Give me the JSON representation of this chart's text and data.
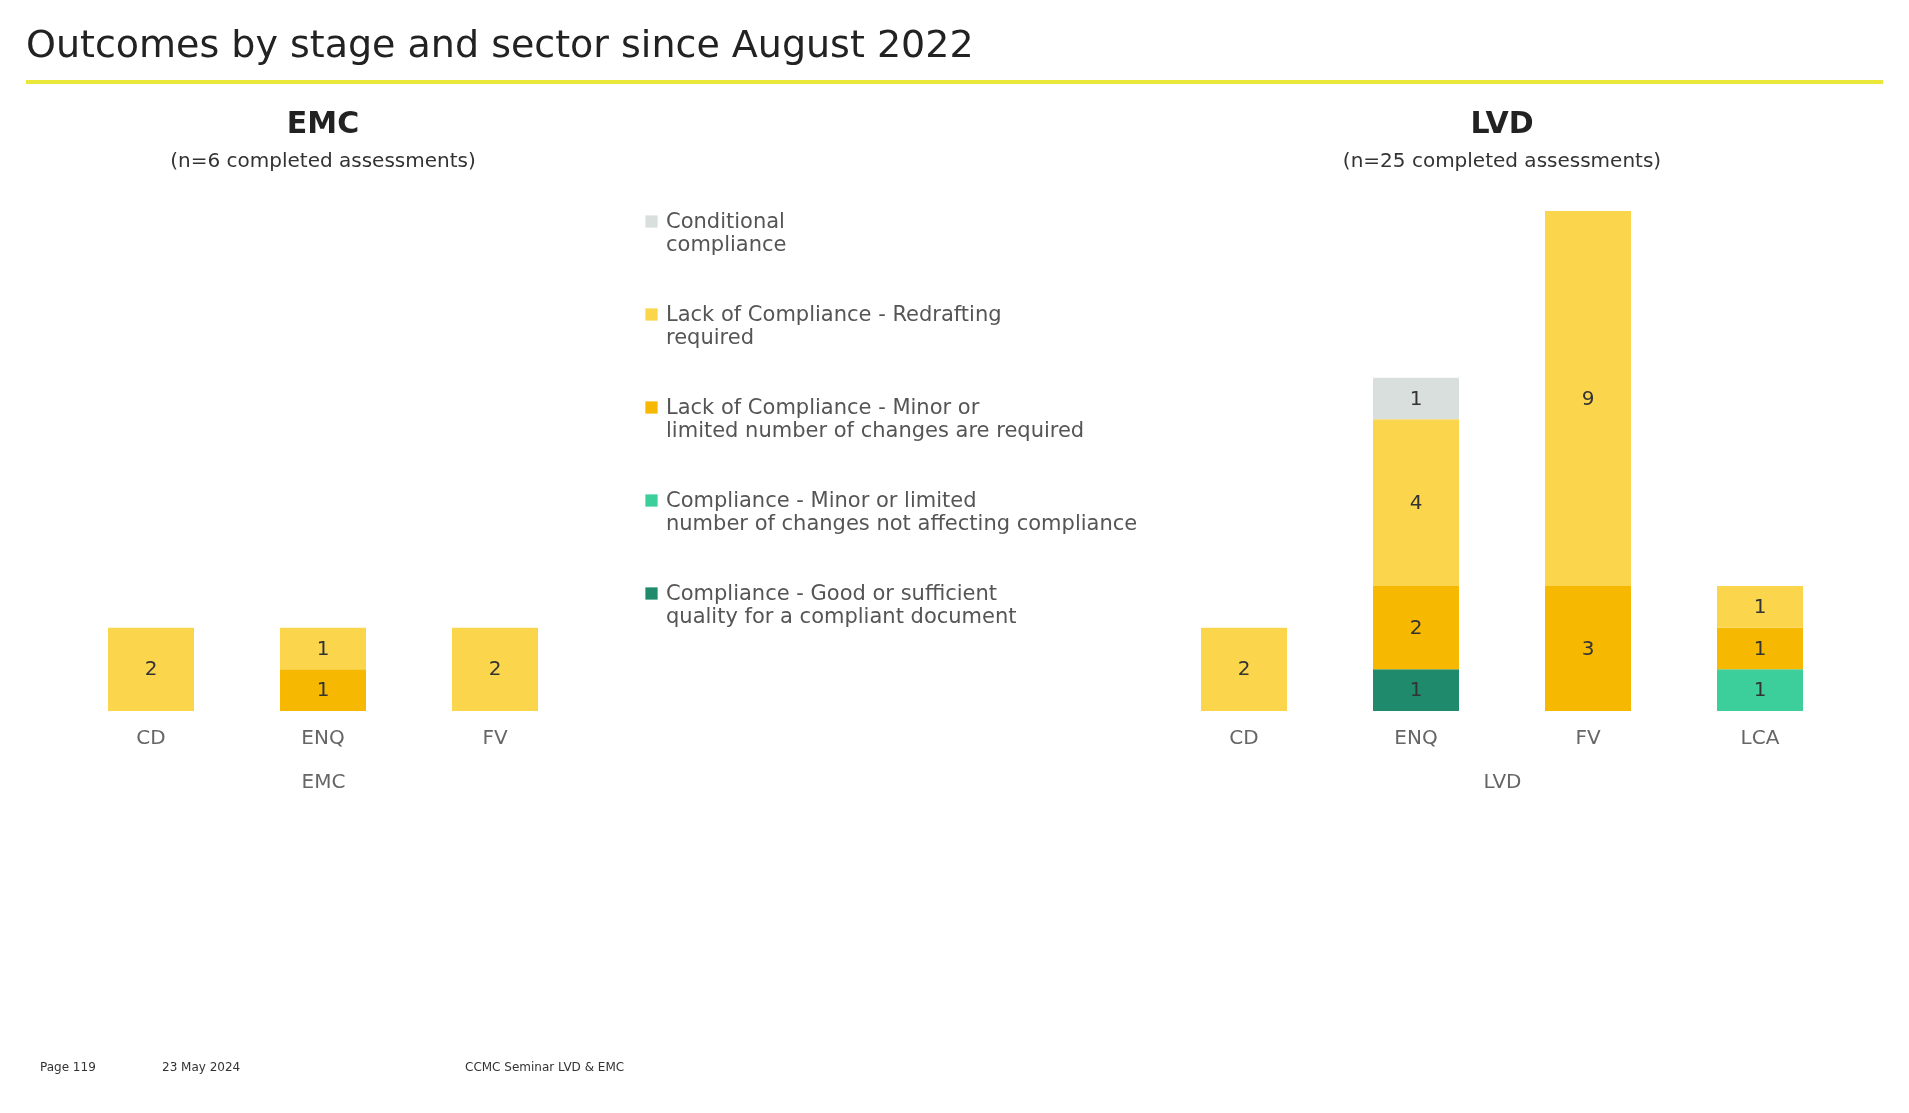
{
  "chart_data": [
    {
      "type": "bar",
      "stacked": true,
      "data_labels": true,
      "tick_labels": "x",
      "legend": "right",
      "title": "EMC",
      "subtitle": "(n=6 completed assessments)",
      "xlabel": "EMC",
      "categories": [
        "CD",
        "ENQ",
        "FV"
      ],
      "annotations": [
        "Outcomes by stage and sector since August 2022",
        "Page 119",
        "23 May 2024",
        "CCMC Seminar LVD & EMC"
      ],
      "series": [
        {
          "name": "Compliance - Good or sufficient quality for a compliant document",
          "color": "#1f8a6c",
          "values": [
            null,
            null,
            null
          ]
        },
        {
          "name": "Compliance - Minor or limited number of changes not affecting compliance",
          "color": "#3ccf9c",
          "values": [
            null,
            null,
            null
          ]
        },
        {
          "name": "Lack of Compliance - Minor or limited number of changes are required",
          "color": "#f6b800",
          "values": [
            null,
            1,
            null
          ]
        },
        {
          "name": "Lack of Compliance - Redrafting required",
          "color": "#fbd54c",
          "values": [
            2,
            1,
            2
          ]
        },
        {
          "name": "Conditional compliance",
          "color": "#d9dfdd",
          "values": [
            null,
            null,
            null
          ]
        }
      ]
    },
    {
      "type": "bar",
      "stacked": true,
      "data_labels": true,
      "tick_labels": "x",
      "title": "LVD",
      "subtitle": "(n=25 completed assessments)",
      "xlabel": "LVD",
      "categories": [
        "CD",
        "ENQ",
        "FV",
        "LCA"
      ],
      "series": [
        {
          "color": "#1f8a6c",
          "values": [
            null,
            1,
            null,
            null
          ]
        },
        {
          "color": "#3ccf9c",
          "values": [
            null,
            null,
            null,
            1
          ]
        },
        {
          "color": "#f6b800",
          "values": [
            null,
            2,
            3,
            1
          ]
        },
        {
          "color": "#fbd54c",
          "values": [
            2,
            4,
            9,
            1
          ]
        },
        {
          "color": "#d9dfdd",
          "values": [
            null,
            1,
            null,
            null
          ]
        }
      ]
    }
  ]
}
